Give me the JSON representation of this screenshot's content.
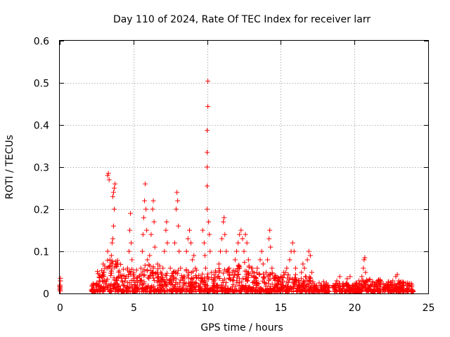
{
  "chart_data": {
    "type": "scatter",
    "title": "Day 110 of 2024, Rate Of TEC Index for receiver larr",
    "xlabel": "GPS time / hours",
    "ylabel": "ROTI / TECUs",
    "xlim": [
      0,
      25
    ],
    "ylim": [
      0,
      0.6
    ],
    "xticks": [
      0,
      5,
      10,
      15,
      20,
      25
    ],
    "yticks": [
      0,
      0.1,
      0.2,
      0.3,
      0.4,
      0.5,
      0.6
    ],
    "xtick_labels": [
      "0",
      "5",
      "10",
      "15",
      "20",
      "25"
    ],
    "ytick_labels": [
      "0",
      "0.1",
      "0.2",
      "0.3",
      "0.4",
      "0.5",
      "0.6"
    ],
    "grid": true,
    "marker": "+",
    "color": "#ff0000",
    "series": [
      {
        "name": "ROTI",
        "points": [
          [
            0.0,
            0.01
          ],
          [
            0.0,
            0.016
          ],
          [
            0.0,
            0.02
          ],
          [
            0.05,
            0.03
          ],
          [
            0.05,
            0.036
          ],
          [
            2.2,
            0.01
          ],
          [
            2.2,
            0.02
          ],
          [
            2.3,
            0.015
          ],
          [
            2.5,
            0.022
          ],
          [
            2.7,
            0.03
          ],
          [
            2.9,
            0.04
          ],
          [
            2.95,
            0.07
          ],
          [
            3.0,
            0.05
          ],
          [
            3.05,
            0.065
          ],
          [
            3.2,
            0.06
          ],
          [
            3.25,
            0.1
          ],
          [
            3.25,
            0.28
          ],
          [
            3.3,
            0.285
          ],
          [
            3.35,
            0.27
          ],
          [
            3.4,
            0.08
          ],
          [
            3.5,
            0.09
          ],
          [
            3.55,
            0.12
          ],
          [
            3.6,
            0.23
          ],
          [
            3.65,
            0.24
          ],
          [
            3.7,
            0.25
          ],
          [
            3.75,
            0.26
          ],
          [
            3.7,
            0.2
          ],
          [
            3.65,
            0.16
          ],
          [
            3.6,
            0.13
          ],
          [
            3.8,
            0.07
          ],
          [
            4.0,
            0.04
          ],
          [
            4.3,
            0.02
          ],
          [
            4.5,
            0.04
          ],
          [
            4.6,
            0.06
          ],
          [
            4.7,
            0.1
          ],
          [
            4.75,
            0.15
          ],
          [
            4.8,
            0.19
          ],
          [
            4.85,
            0.12
          ],
          [
            4.9,
            0.08
          ],
          [
            5.0,
            0.05
          ],
          [
            5.2,
            0.03
          ],
          [
            5.4,
            0.04
          ],
          [
            5.5,
            0.06
          ],
          [
            5.6,
            0.1
          ],
          [
            5.65,
            0.14
          ],
          [
            5.7,
            0.18
          ],
          [
            5.75,
            0.22
          ],
          [
            5.8,
            0.26
          ],
          [
            5.85,
            0.2
          ],
          [
            5.9,
            0.15
          ],
          [
            5.95,
            0.08
          ],
          [
            6.1,
            0.09
          ],
          [
            6.2,
            0.14
          ],
          [
            6.3,
            0.2
          ],
          [
            6.35,
            0.22
          ],
          [
            6.4,
            0.17
          ],
          [
            6.45,
            0.11
          ],
          [
            6.6,
            0.05
          ],
          [
            6.9,
            0.03
          ],
          [
            7.0,
            0.06
          ],
          [
            7.1,
            0.1
          ],
          [
            7.2,
            0.15
          ],
          [
            7.25,
            0.17
          ],
          [
            7.3,
            0.12
          ],
          [
            7.5,
            0.06
          ],
          [
            7.6,
            0.04
          ],
          [
            7.7,
            0.05
          ],
          [
            7.8,
            0.12
          ],
          [
            7.9,
            0.2
          ],
          [
            7.95,
            0.24
          ],
          [
            8.0,
            0.22
          ],
          [
            8.05,
            0.16
          ],
          [
            8.1,
            0.1
          ],
          [
            8.2,
            0.06
          ],
          [
            8.4,
            0.04
          ],
          [
            8.6,
            0.1
          ],
          [
            8.7,
            0.13
          ],
          [
            8.8,
            0.15
          ],
          [
            8.9,
            0.12
          ],
          [
            9.0,
            0.08
          ],
          [
            9.1,
            0.09
          ],
          [
            9.2,
            0.06
          ],
          [
            9.5,
            0.01
          ],
          [
            9.6,
            0.03
          ],
          [
            9.7,
            0.15
          ],
          [
            9.8,
            0.12
          ],
          [
            9.85,
            0.09
          ],
          [
            9.9,
            0.06
          ],
          [
            10.0,
            0.2
          ],
          [
            10.0,
            0.255
          ],
          [
            10.0,
            0.3
          ],
          [
            10.0,
            0.335
          ],
          [
            10.0,
            0.387
          ],
          [
            10.05,
            0.444
          ],
          [
            10.05,
            0.504
          ],
          [
            10.1,
            0.17
          ],
          [
            10.15,
            0.14
          ],
          [
            10.2,
            0.1
          ],
          [
            10.3,
            0.05
          ],
          [
            10.5,
            0.02
          ],
          [
            10.7,
            0.04
          ],
          [
            10.8,
            0.07
          ],
          [
            10.9,
            0.1
          ],
          [
            11.0,
            0.13
          ],
          [
            11.1,
            0.17
          ],
          [
            11.15,
            0.18
          ],
          [
            11.2,
            0.14
          ],
          [
            11.3,
            0.1
          ],
          [
            11.5,
            0.06
          ],
          [
            11.7,
            0.05
          ],
          [
            11.9,
            0.08
          ],
          [
            12.0,
            0.1
          ],
          [
            12.1,
            0.12
          ],
          [
            12.2,
            0.14
          ],
          [
            12.3,
            0.15
          ],
          [
            12.4,
            0.13
          ],
          [
            12.5,
            0.1
          ],
          [
            12.6,
            0.14
          ],
          [
            12.7,
            0.12
          ],
          [
            12.8,
            0.08
          ],
          [
            13.0,
            0.06
          ],
          [
            13.2,
            0.04
          ],
          [
            13.4,
            0.06
          ],
          [
            13.6,
            0.08
          ],
          [
            13.7,
            0.1
          ],
          [
            13.8,
            0.07
          ],
          [
            14.0,
            0.05
          ],
          [
            14.1,
            0.08
          ],
          [
            14.2,
            0.13
          ],
          [
            14.25,
            0.15
          ],
          [
            14.3,
            0.11
          ],
          [
            14.4,
            0.06
          ],
          [
            14.6,
            0.04
          ],
          [
            14.8,
            0.03
          ],
          [
            15.0,
            0.04
          ],
          [
            15.2,
            0.05
          ],
          [
            15.4,
            0.06
          ],
          [
            15.6,
            0.08
          ],
          [
            15.7,
            0.1
          ],
          [
            15.8,
            0.12
          ],
          [
            15.9,
            0.1
          ],
          [
            16.0,
            0.06
          ],
          [
            16.2,
            0.03
          ],
          [
            16.4,
            0.05
          ],
          [
            16.5,
            0.07
          ],
          [
            16.6,
            0.06
          ],
          [
            16.7,
            0.04
          ],
          [
            16.8,
            0.08
          ],
          [
            16.9,
            0.1
          ],
          [
            17.0,
            0.09
          ],
          [
            17.1,
            0.05
          ],
          [
            17.3,
            0.02
          ],
          [
            17.6,
            0.025
          ],
          [
            17.9,
            0.028
          ],
          [
            18.1,
            0.025
          ],
          [
            18.2,
            0.02
          ],
          [
            18.6,
            0.015
          ],
          [
            18.8,
            0.03
          ],
          [
            19.0,
            0.04
          ],
          [
            19.2,
            0.02
          ],
          [
            19.5,
            0.035
          ],
          [
            19.7,
            0.04
          ],
          [
            19.9,
            0.02
          ],
          [
            20.1,
            0.025
          ],
          [
            20.3,
            0.03
          ],
          [
            20.5,
            0.04
          ],
          [
            20.6,
            0.06
          ],
          [
            20.65,
            0.08
          ],
          [
            20.7,
            0.085
          ],
          [
            20.75,
            0.05
          ],
          [
            20.9,
            0.03
          ],
          [
            21.1,
            0.02
          ],
          [
            21.4,
            0.025
          ],
          [
            21.7,
            0.02
          ],
          [
            22.0,
            0.015
          ],
          [
            22.3,
            0.02
          ],
          [
            22.6,
            0.03
          ],
          [
            22.8,
            0.04
          ],
          [
            22.9,
            0.045
          ],
          [
            23.0,
            0.03
          ],
          [
            23.3,
            0.02
          ],
          [
            23.6,
            0.025
          ],
          [
            23.9,
            0.02
          ]
        ],
        "bands": [
          {
            "x": [
              0.0,
              0.05
            ],
            "y": [
              0.005,
              0.02
            ]
          },
          {
            "x": [
              2.1,
              2.5
            ],
            "y": [
              0.004,
              0.026
            ]
          },
          {
            "x": [
              2.5,
              3.2
            ],
            "y": [
              0.004,
              0.06
            ]
          },
          {
            "x": [
              3.2,
              4.2
            ],
            "y": [
              0.004,
              0.08
            ]
          },
          {
            "x": [
              4.2,
              5.3
            ],
            "y": [
              0.004,
              0.06
            ]
          },
          {
            "x": [
              5.3,
              6.8
            ],
            "y": [
              0.004,
              0.07
            ]
          },
          {
            "x": [
              6.8,
              8.4
            ],
            "y": [
              0.004,
              0.06
            ]
          },
          {
            "x": [
              8.4,
              9.3
            ],
            "y": [
              0.004,
              0.06
            ]
          },
          {
            "x": [
              9.4,
              10.5
            ],
            "y": [
              0.004,
              0.05
            ]
          },
          {
            "x": [
              10.5,
              11.6
            ],
            "y": [
              0.004,
              0.06
            ]
          },
          {
            "x": [
              11.6,
              13.1
            ],
            "y": [
              0.004,
              0.08
            ]
          },
          {
            "x": [
              13.1,
              14.7
            ],
            "y": [
              0.004,
              0.05
            ]
          },
          {
            "x": [
              14.7,
              16.1
            ],
            "y": [
              0.004,
              0.05
            ]
          },
          {
            "x": [
              16.1,
              17.2
            ],
            "y": [
              0.004,
              0.04
            ]
          },
          {
            "x": [
              17.2,
              18.3
            ],
            "y": [
              0.004,
              0.02
            ]
          },
          {
            "x": [
              18.5,
              20.4
            ],
            "y": [
              0.004,
              0.025
            ]
          },
          {
            "x": [
              20.4,
              21.8
            ],
            "y": [
              0.004,
              0.035
            ]
          },
          {
            "x": [
              21.9,
              24.0
            ],
            "y": [
              0.004,
              0.028
            ]
          }
        ]
      }
    ]
  }
}
